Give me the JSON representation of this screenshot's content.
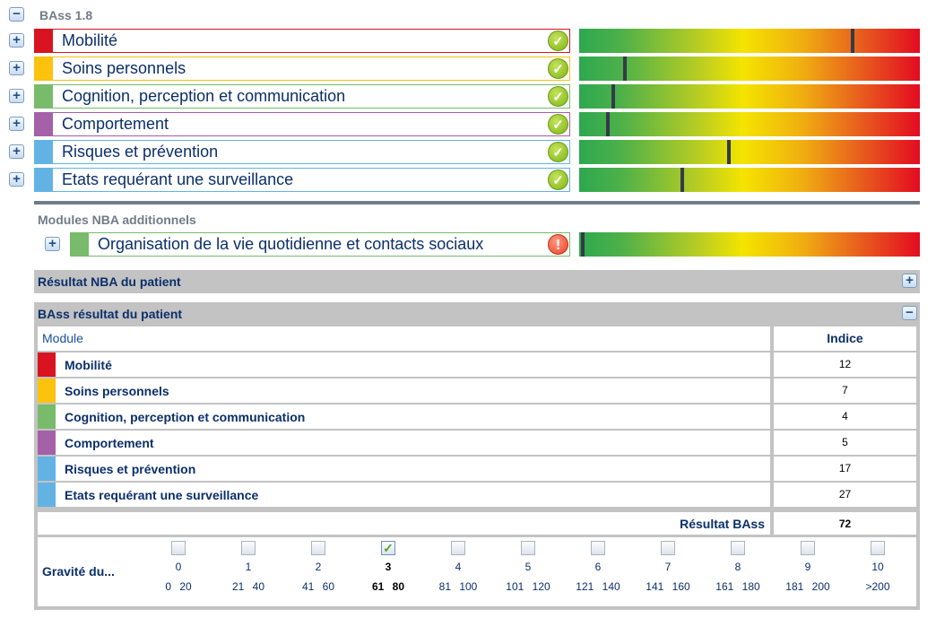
{
  "header": {
    "title": "BAss 1.8"
  },
  "modules": [
    {
      "label": "Mobilité",
      "color": "#d7141f",
      "status": "ok",
      "marker": 0.797
    },
    {
      "label": "Soins personnels",
      "color": "#fbc20e",
      "status": "ok",
      "marker": 0.129
    },
    {
      "label": "Cognition, perception et communication",
      "color": "#77bb6b",
      "status": "ok",
      "marker": 0.095
    },
    {
      "label": "Comportement",
      "color": "#a461a8",
      "status": "ok",
      "marker": 0.079
    },
    {
      "label": "Risques et prévention",
      "color": "#62b3e4",
      "status": "ok",
      "marker": 0.435
    },
    {
      "label": "Etats requérant une surveillance",
      "color": "#62b3e4",
      "status": "ok",
      "marker": 0.298
    }
  ],
  "additional": {
    "title": "Modules NBA additionnels",
    "module": {
      "label": "Organisation de la vie quotidienne et contacts sociaux",
      "color": "#77bb6b",
      "status": "warning",
      "marker": 0.005
    }
  },
  "nba_section": {
    "title": "Résultat NBA du patient"
  },
  "bass_section": {
    "title": "BAss résultat du patient",
    "col_module": "Module",
    "col_indice": "Indice",
    "rows": [
      {
        "label": "Mobilité",
        "color": "#d7141f",
        "value": "12"
      },
      {
        "label": "Soins personnels",
        "color": "#fbc20e",
        "value": "7"
      },
      {
        "label": "Cognition, perception et communication",
        "color": "#77bb6b",
        "value": "4"
      },
      {
        "label": "Comportement",
        "color": "#a461a8",
        "value": "5"
      },
      {
        "label": "Risques et prévention",
        "color": "#62b3e4",
        "value": "17"
      },
      {
        "label": "Etats requérant une surveillance",
        "color": "#62b3e4",
        "value": "27"
      }
    ],
    "result_label": "Résultat BAss",
    "result_value": "72",
    "gravity_label": "Gravité du...",
    "gravity": [
      {
        "n": "0",
        "range": "0 20"
      },
      {
        "n": "1",
        "range": "21 40"
      },
      {
        "n": "2",
        "range": "41 60"
      },
      {
        "n": "3",
        "range": "61 80",
        "checked": true
      },
      {
        "n": "4",
        "range": "81 100"
      },
      {
        "n": "5",
        "range": "101 120"
      },
      {
        "n": "6",
        "range": "121 140"
      },
      {
        "n": "7",
        "range": "141 160"
      },
      {
        "n": "8",
        "range": "161 180"
      },
      {
        "n": "9",
        "range": "181 200"
      },
      {
        "n": "10",
        "range": ">200"
      }
    ]
  }
}
